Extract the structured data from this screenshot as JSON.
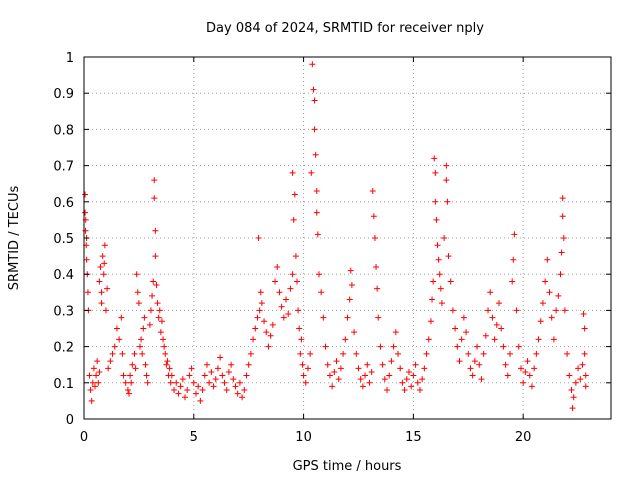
{
  "chart_data": {
    "type": "scatter",
    "title": "Day 084 of 2024, SRMTID for receiver nply",
    "xlabel": "GPS time / hours",
    "ylabel": "SRMTID / TECUs",
    "xlim": [
      0,
      24
    ],
    "ylim": [
      0,
      1
    ],
    "xticks": [
      0,
      5,
      10,
      15,
      20
    ],
    "xtick_labels": [
      "0",
      "5",
      "10",
      "15",
      "20"
    ],
    "yticks": [
      0,
      0.1,
      0.2,
      0.3,
      0.4,
      0.5,
      0.6,
      0.7,
      0.8,
      0.9,
      1
    ],
    "ytick_labels": [
      "0",
      "0.1",
      "0.2",
      "0.3",
      "0.4",
      "0.5",
      "0.6",
      "0.7",
      "0.8",
      "0.9",
      "1"
    ],
    "grid": true,
    "marker": "+",
    "color": "#ff0000",
    "series": [
      {
        "name": "SRMTID",
        "points": [
          [
            0.05,
            0.62
          ],
          [
            0.05,
            0.57
          ],
          [
            0.07,
            0.52
          ],
          [
            0.1,
            0.48
          ],
          [
            0.12,
            0.44
          ],
          [
            0.15,
            0.4
          ],
          [
            0.18,
            0.35
          ],
          [
            0.2,
            0.3
          ],
          [
            0.08,
            0.55
          ],
          [
            0.12,
            0.5
          ],
          [
            0.25,
            0.12
          ],
          [
            0.3,
            0.08
          ],
          [
            0.35,
            0.05
          ],
          [
            0.4,
            0.1
          ],
          [
            0.45,
            0.14
          ],
          [
            0.5,
            0.09
          ],
          [
            0.55,
            0.12
          ],
          [
            0.6,
            0.16
          ],
          [
            0.65,
            0.1
          ],
          [
            0.7,
            0.13
          ],
          [
            0.7,
            0.38
          ],
          [
            0.75,
            0.42
          ],
          [
            0.8,
            0.35
          ],
          [
            0.85,
            0.45
          ],
          [
            0.9,
            0.4
          ],
          [
            0.95,
            0.48
          ],
          [
            1.0,
            0.3
          ],
          [
            1.05,
            0.36
          ],
          [
            0.8,
            0.32
          ],
          [
            0.92,
            0.43
          ],
          [
            1.1,
            0.14
          ],
          [
            1.2,
            0.16
          ],
          [
            1.3,
            0.18
          ],
          [
            1.4,
            0.2
          ],
          [
            1.5,
            0.25
          ],
          [
            1.6,
            0.22
          ],
          [
            1.7,
            0.28
          ],
          [
            1.75,
            0.18
          ],
          [
            1.8,
            0.12
          ],
          [
            1.9,
            0.1
          ],
          [
            2.0,
            0.08
          ],
          [
            2.05,
            0.07
          ],
          [
            2.1,
            0.12
          ],
          [
            2.15,
            0.1
          ],
          [
            2.2,
            0.15
          ],
          [
            2.3,
            0.18
          ],
          [
            2.35,
            0.14
          ],
          [
            2.4,
            0.4
          ],
          [
            2.45,
            0.35
          ],
          [
            2.5,
            0.32
          ],
          [
            2.55,
            0.2
          ],
          [
            2.6,
            0.22
          ],
          [
            2.65,
            0.18
          ],
          [
            2.7,
            0.25
          ],
          [
            2.75,
            0.28
          ],
          [
            2.8,
            0.15
          ],
          [
            2.85,
            0.12
          ],
          [
            2.9,
            0.1
          ],
          [
            3.0,
            0.26
          ],
          [
            3.05,
            0.3
          ],
          [
            3.1,
            0.34
          ],
          [
            3.15,
            0.38
          ],
          [
            3.2,
            0.66
          ],
          [
            3.2,
            0.61
          ],
          [
            3.25,
            0.52
          ],
          [
            3.25,
            0.45
          ],
          [
            3.3,
            0.37
          ],
          [
            3.35,
            0.32
          ],
          [
            3.4,
            0.28
          ],
          [
            3.45,
            0.3
          ],
          [
            3.5,
            0.24
          ],
          [
            3.55,
            0.27
          ],
          [
            3.6,
            0.22
          ],
          [
            3.65,
            0.2
          ],
          [
            3.7,
            0.18
          ],
          [
            3.75,
            0.15
          ],
          [
            3.8,
            0.16
          ],
          [
            3.85,
            0.12
          ],
          [
            3.9,
            0.14
          ],
          [
            3.95,
            0.1
          ],
          [
            4.0,
            0.12
          ],
          [
            4.1,
            0.08
          ],
          [
            4.2,
            0.1
          ],
          [
            4.3,
            0.07
          ],
          [
            4.4,
            0.09
          ],
          [
            4.5,
            0.11
          ],
          [
            4.6,
            0.06
          ],
          [
            4.7,
            0.08
          ],
          [
            4.8,
            0.12
          ],
          [
            4.9,
            0.14
          ],
          [
            5.0,
            0.1
          ],
          [
            5.1,
            0.07
          ],
          [
            5.2,
            0.09
          ],
          [
            5.3,
            0.05
          ],
          [
            5.4,
            0.08
          ],
          [
            5.5,
            0.12
          ],
          [
            5.6,
            0.15
          ],
          [
            5.7,
            0.1
          ],
          [
            5.8,
            0.13
          ],
          [
            5.9,
            0.09
          ],
          [
            6.0,
            0.11
          ],
          [
            6.1,
            0.14
          ],
          [
            6.2,
            0.17
          ],
          [
            6.3,
            0.12
          ],
          [
            6.4,
            0.1
          ],
          [
            6.5,
            0.08
          ],
          [
            6.6,
            0.13
          ],
          [
            6.7,
            0.15
          ],
          [
            6.8,
            0.11
          ],
          [
            6.9,
            0.09
          ],
          [
            7.0,
            0.07
          ],
          [
            7.1,
            0.1
          ],
          [
            7.2,
            0.06
          ],
          [
            7.3,
            0.08
          ],
          [
            7.4,
            0.12
          ],
          [
            7.5,
            0.15
          ],
          [
            7.6,
            0.18
          ],
          [
            7.7,
            0.22
          ],
          [
            7.8,
            0.25
          ],
          [
            7.9,
            0.28
          ],
          [
            7.95,
            0.5
          ],
          [
            8.0,
            0.3
          ],
          [
            8.05,
            0.35
          ],
          [
            8.1,
            0.32
          ],
          [
            8.2,
            0.27
          ],
          [
            8.3,
            0.24
          ],
          [
            8.4,
            0.2
          ],
          [
            8.5,
            0.23
          ],
          [
            8.6,
            0.26
          ],
          [
            8.7,
            0.38
          ],
          [
            8.8,
            0.42
          ],
          [
            8.9,
            0.35
          ],
          [
            9.0,
            0.31
          ],
          [
            9.1,
            0.28
          ],
          [
            9.2,
            0.33
          ],
          [
            9.3,
            0.29
          ],
          [
            9.4,
            0.36
          ],
          [
            9.5,
            0.4
          ],
          [
            9.55,
            0.55
          ],
          [
            9.6,
            0.62
          ],
          [
            9.5,
            0.68
          ],
          [
            9.65,
            0.45
          ],
          [
            9.7,
            0.38
          ],
          [
            9.75,
            0.3
          ],
          [
            9.8,
            0.25
          ],
          [
            9.85,
            0.18
          ],
          [
            9.9,
            0.22
          ],
          [
            9.95,
            0.15
          ],
          [
            10.0,
            0.12
          ],
          [
            10.1,
            0.1
          ],
          [
            10.2,
            0.14
          ],
          [
            10.3,
            0.18
          ],
          [
            10.35,
            0.68
          ],
          [
            10.4,
            0.98
          ],
          [
            10.45,
            0.91
          ],
          [
            10.5,
            0.88
          ],
          [
            10.5,
            0.8
          ],
          [
            10.55,
            0.73
          ],
          [
            10.6,
            0.63
          ],
          [
            10.6,
            0.57
          ],
          [
            10.65,
            0.51
          ],
          [
            10.7,
            0.4
          ],
          [
            10.8,
            0.35
          ],
          [
            10.9,
            0.28
          ],
          [
            11.0,
            0.2
          ],
          [
            11.1,
            0.15
          ],
          [
            11.2,
            0.12
          ],
          [
            11.3,
            0.09
          ],
          [
            11.4,
            0.13
          ],
          [
            11.5,
            0.16
          ],
          [
            11.6,
            0.11
          ],
          [
            11.7,
            0.14
          ],
          [
            11.8,
            0.18
          ],
          [
            11.9,
            0.22
          ],
          [
            12.0,
            0.28
          ],
          [
            12.1,
            0.33
          ],
          [
            12.15,
            0.41
          ],
          [
            12.2,
            0.37
          ],
          [
            12.3,
            0.24
          ],
          [
            12.4,
            0.18
          ],
          [
            12.5,
            0.14
          ],
          [
            12.6,
            0.11
          ],
          [
            12.7,
            0.09
          ],
          [
            12.8,
            0.12
          ],
          [
            12.9,
            0.15
          ],
          [
            13.0,
            0.1
          ],
          [
            13.1,
            0.13
          ],
          [
            13.15,
            0.63
          ],
          [
            13.2,
            0.56
          ],
          [
            13.25,
            0.5
          ],
          [
            13.3,
            0.42
          ],
          [
            13.35,
            0.36
          ],
          [
            13.4,
            0.28
          ],
          [
            13.5,
            0.2
          ],
          [
            13.6,
            0.15
          ],
          [
            13.7,
            0.11
          ],
          [
            13.8,
            0.08
          ],
          [
            13.9,
            0.12
          ],
          [
            14.0,
            0.16
          ],
          [
            14.1,
            0.2
          ],
          [
            14.2,
            0.24
          ],
          [
            14.3,
            0.18
          ],
          [
            14.4,
            0.14
          ],
          [
            14.5,
            0.1
          ],
          [
            14.6,
            0.08
          ],
          [
            14.7,
            0.11
          ],
          [
            14.8,
            0.13
          ],
          [
            14.9,
            0.09
          ],
          [
            15.0,
            0.12
          ],
          [
            15.1,
            0.15
          ],
          [
            15.2,
            0.1
          ],
          [
            15.3,
            0.08
          ],
          [
            15.4,
            0.11
          ],
          [
            15.5,
            0.14
          ],
          [
            15.6,
            0.18
          ],
          [
            15.7,
            0.22
          ],
          [
            15.8,
            0.27
          ],
          [
            15.85,
            0.33
          ],
          [
            15.9,
            0.38
          ],
          [
            15.95,
            0.72
          ],
          [
            16.0,
            0.68
          ],
          [
            16.0,
            0.6
          ],
          [
            16.05,
            0.55
          ],
          [
            16.1,
            0.48
          ],
          [
            16.15,
            0.44
          ],
          [
            16.2,
            0.4
          ],
          [
            16.25,
            0.36
          ],
          [
            16.3,
            0.32
          ],
          [
            16.4,
            0.5
          ],
          [
            16.5,
            0.7
          ],
          [
            16.5,
            0.66
          ],
          [
            16.55,
            0.6
          ],
          [
            16.6,
            0.45
          ],
          [
            16.7,
            0.38
          ],
          [
            16.8,
            0.3
          ],
          [
            16.9,
            0.25
          ],
          [
            17.0,
            0.2
          ],
          [
            17.1,
            0.16
          ],
          [
            17.2,
            0.22
          ],
          [
            17.3,
            0.28
          ],
          [
            17.4,
            0.24
          ],
          [
            17.5,
            0.18
          ],
          [
            17.6,
            0.14
          ],
          [
            17.7,
            0.12
          ],
          [
            17.8,
            0.16
          ],
          [
            17.9,
            0.2
          ],
          [
            18.0,
            0.15
          ],
          [
            18.1,
            0.11
          ],
          [
            18.2,
            0.18
          ],
          [
            18.3,
            0.23
          ],
          [
            18.4,
            0.3
          ],
          [
            18.5,
            0.35
          ],
          [
            18.6,
            0.28
          ],
          [
            18.7,
            0.22
          ],
          [
            18.8,
            0.26
          ],
          [
            18.9,
            0.32
          ],
          [
            19.0,
            0.25
          ],
          [
            19.1,
            0.2
          ],
          [
            19.2,
            0.15
          ],
          [
            19.3,
            0.12
          ],
          [
            19.4,
            0.18
          ],
          [
            19.5,
            0.38
          ],
          [
            19.55,
            0.44
          ],
          [
            19.6,
            0.51
          ],
          [
            19.7,
            0.3
          ],
          [
            19.8,
            0.2
          ],
          [
            19.9,
            0.14
          ],
          [
            20.0,
            0.1
          ],
          [
            20.1,
            0.13
          ],
          [
            20.2,
            0.16
          ],
          [
            20.3,
            0.12
          ],
          [
            20.4,
            0.09
          ],
          [
            20.5,
            0.14
          ],
          [
            20.6,
            0.18
          ],
          [
            20.7,
            0.22
          ],
          [
            20.8,
            0.27
          ],
          [
            20.9,
            0.32
          ],
          [
            21.0,
            0.38
          ],
          [
            21.1,
            0.44
          ],
          [
            21.2,
            0.35
          ],
          [
            21.3,
            0.28
          ],
          [
            21.4,
            0.22
          ],
          [
            21.5,
            0.3
          ],
          [
            21.6,
            0.34
          ],
          [
            21.7,
            0.4
          ],
          [
            21.75,
            0.46
          ],
          [
            21.8,
            0.56
          ],
          [
            21.8,
            0.61
          ],
          [
            21.85,
            0.5
          ],
          [
            21.9,
            0.3
          ],
          [
            22.0,
            0.18
          ],
          [
            22.1,
            0.12
          ],
          [
            22.2,
            0.08
          ],
          [
            22.25,
            0.03
          ],
          [
            22.3,
            0.06
          ],
          [
            22.4,
            0.1
          ],
          [
            22.5,
            0.14
          ],
          [
            22.6,
            0.11
          ],
          [
            22.7,
            0.15
          ],
          [
            22.75,
            0.29
          ],
          [
            22.8,
            0.25
          ],
          [
            22.8,
            0.18
          ],
          [
            22.85,
            0.12
          ],
          [
            22.85,
            0.09
          ]
        ]
      }
    ]
  }
}
